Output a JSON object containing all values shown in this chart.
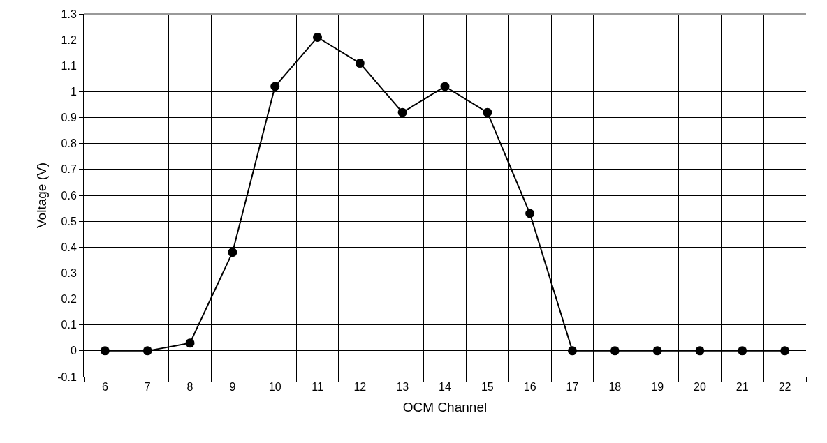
{
  "chart_data": {
    "type": "line",
    "xlabel": "OCM Channel",
    "ylabel": "Voltage (V)",
    "categories": [
      "6",
      "7",
      "8",
      "9",
      "10",
      "11",
      "12",
      "13",
      "14",
      "15",
      "16",
      "17",
      "18",
      "19",
      "20",
      "21",
      "22"
    ],
    "series": [
      {
        "color": "#000000",
        "values": [
          0,
          0,
          0.03,
          0.38,
          1.02,
          1.21,
          1.11,
          0.92,
          1.02,
          0.92,
          0.53,
          0,
          0,
          0,
          0,
          0,
          0
        ]
      }
    ],
    "ylim": [
      -0.1,
      1.3
    ],
    "yticks": [
      -0.1,
      0,
      0.1,
      0.2,
      0.3,
      0.4,
      0.5,
      0.6,
      0.7,
      0.8,
      0.9,
      1,
      1.1,
      1.2,
      1.3
    ],
    "grid": true,
    "marker": "circle",
    "line_style": "solid"
  }
}
